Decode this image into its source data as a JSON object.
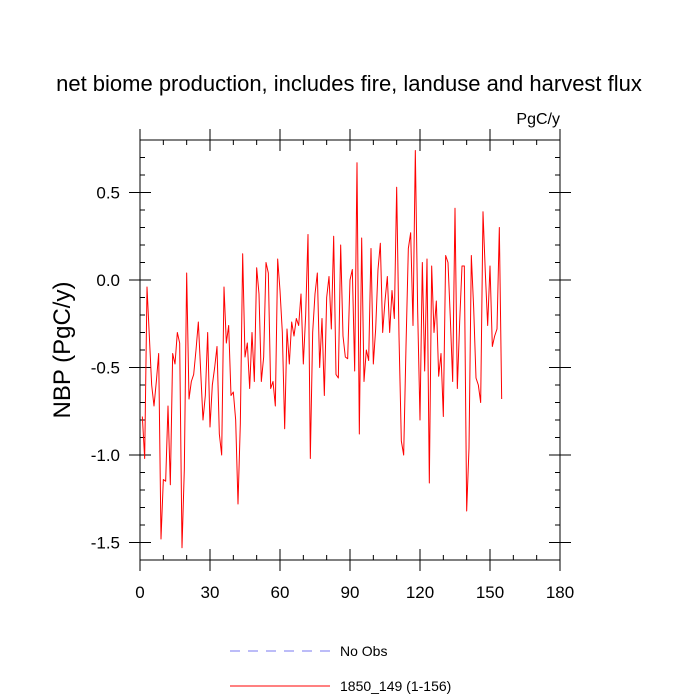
{
  "chart_data": {
    "type": "line",
    "title": "net biome production, includes fire, landuse and harvest flux",
    "units": "PgC/y",
    "ylabel": "NBP  (PgC/y)",
    "xlabel": "",
    "xlim": [
      0,
      180
    ],
    "ylim": [
      -1.6,
      0.8
    ],
    "x_ticks": [
      0,
      30,
      60,
      90,
      120,
      150,
      180
    ],
    "x_tick_labels": [
      "0",
      "30",
      "60",
      "90",
      "120",
      "150",
      "180"
    ],
    "y_ticks": [
      -1.5,
      -1.0,
      -0.5,
      0.0,
      0.5
    ],
    "y_tick_labels": [
      "-1.5",
      "-1.0",
      "-0.5",
      "0.0",
      "0.5"
    ],
    "grid": false,
    "legend_position": "bottom",
    "series": [
      {
        "name": "No Obs",
        "color": "#7a7af0",
        "dash": true,
        "values": []
      },
      {
        "name": "1850_149 (1-156)",
        "color": "#ff0000",
        "dash": false,
        "x_start": 1,
        "values": [
          -0.78,
          -1.02,
          -0.04,
          -0.32,
          -0.6,
          -0.72,
          -0.58,
          -0.42,
          -1.48,
          -1.14,
          -1.15,
          -0.72,
          -1.17,
          -0.42,
          -0.48,
          -0.3,
          -0.36,
          -1.53,
          -1.08,
          0.04,
          -0.68,
          -0.58,
          -0.54,
          -0.4,
          -0.24,
          -0.52,
          -0.8,
          -0.66,
          -0.3,
          -0.84,
          -0.6,
          -0.5,
          -0.38,
          -0.88,
          -1.0,
          -0.04,
          -0.36,
          -0.26,
          -0.66,
          -0.64,
          -0.8,
          -1.28,
          -0.82,
          0.15,
          -0.44,
          -0.36,
          -0.62,
          -0.3,
          -0.58,
          0.07,
          -0.08,
          -0.58,
          -0.44,
          0.1,
          0.04,
          -0.62,
          -0.58,
          -0.72,
          0.12,
          -0.06,
          -0.3,
          -0.85,
          -0.28,
          -0.48,
          -0.24,
          -0.32,
          -0.22,
          -0.26,
          -0.08,
          -0.48,
          -0.2,
          0.26,
          -1.02,
          -0.3,
          -0.08,
          0.04,
          -0.5,
          -0.22,
          -0.66,
          -0.1,
          0.02,
          -0.28,
          0.25,
          -0.54,
          -0.56,
          0.2,
          -0.32,
          -0.44,
          -0.45,
          0.0,
          0.06,
          -0.52,
          0.67,
          -0.88,
          0.24,
          -0.58,
          -0.4,
          -0.46,
          0.18,
          -0.48,
          -0.28,
          0.06,
          0.21,
          -0.3,
          -0.12,
          0.02,
          -0.3,
          -0.06,
          -0.22,
          0.53,
          -0.32,
          -0.92,
          -1.0,
          -0.38,
          0.18,
          0.27,
          -0.26,
          0.74,
          -0.18,
          -0.8,
          0.1,
          -0.52,
          0.12,
          -1.16,
          0.08,
          -0.3,
          -0.12,
          -0.55,
          -0.42,
          -0.78,
          0.14,
          0.1,
          -0.22,
          -0.58,
          0.41,
          -0.62,
          -0.24,
          0.08,
          0.08,
          -1.32,
          -0.96,
          0.14,
          -0.16,
          -0.56,
          -0.6,
          -0.7,
          0.39,
          0.04,
          -0.26,
          0.08,
          -0.38,
          -0.32,
          -0.28,
          0.3,
          -0.68
        ]
      }
    ]
  }
}
